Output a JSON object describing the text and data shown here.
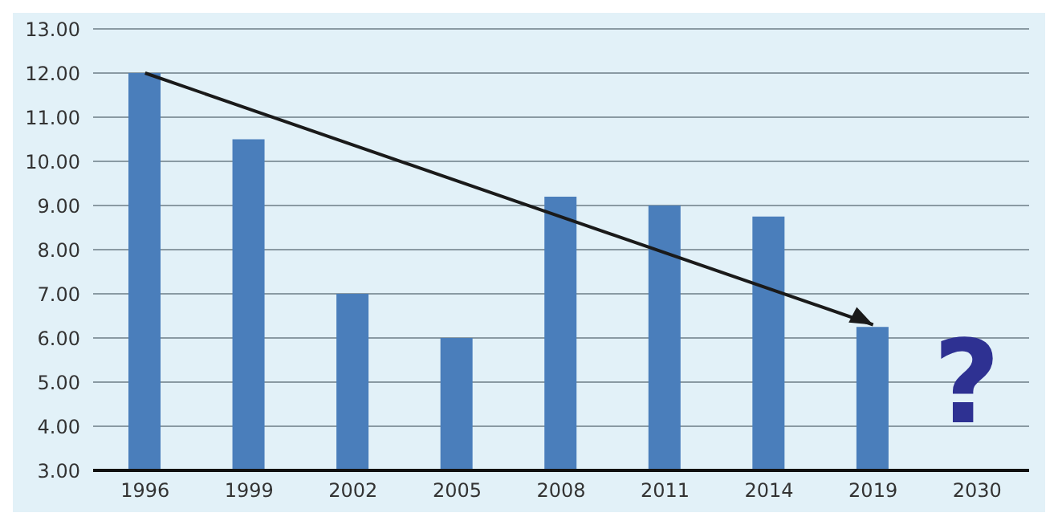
{
  "chart_data": {
    "type": "bar",
    "categories": [
      "1996",
      "1999",
      "2002",
      "2005",
      "2008",
      "2011",
      "2014",
      "2019",
      "2030"
    ],
    "series": [
      {
        "color": "#4a7ebb",
        "values": [
          12,
          10.5,
          7,
          6,
          9.2,
          9.0,
          8.75,
          6.25,
          null
        ]
      },
      {
        "type": "line",
        "color": "#1a1a1a",
        "marker": "none",
        "line_style": "solid",
        "values": [
          12,
          null,
          null,
          null,
          null,
          null,
          null,
          6.3,
          null
        ]
      }
    ],
    "ylim": [
      3,
      13
    ],
    "yticks": [
      {
        "value": 3,
        "label": "3.00"
      },
      {
        "value": 4,
        "label": "4.00"
      },
      {
        "value": 5,
        "label": "5.00"
      },
      {
        "value": 6,
        "label": "6.00"
      },
      {
        "value": 7,
        "label": "7.00"
      },
      {
        "value": 8,
        "label": "8.00"
      },
      {
        "value": 9,
        "label": "9.00"
      },
      {
        "value": 10,
        "label": "10.00"
      },
      {
        "value": 11,
        "label": "11.00"
      },
      {
        "value": 12,
        "label": "12.00"
      },
      {
        "value": 13,
        "label": "13.00"
      }
    ],
    "annotations": [
      "?"
    ],
    "grid": "y"
  }
}
